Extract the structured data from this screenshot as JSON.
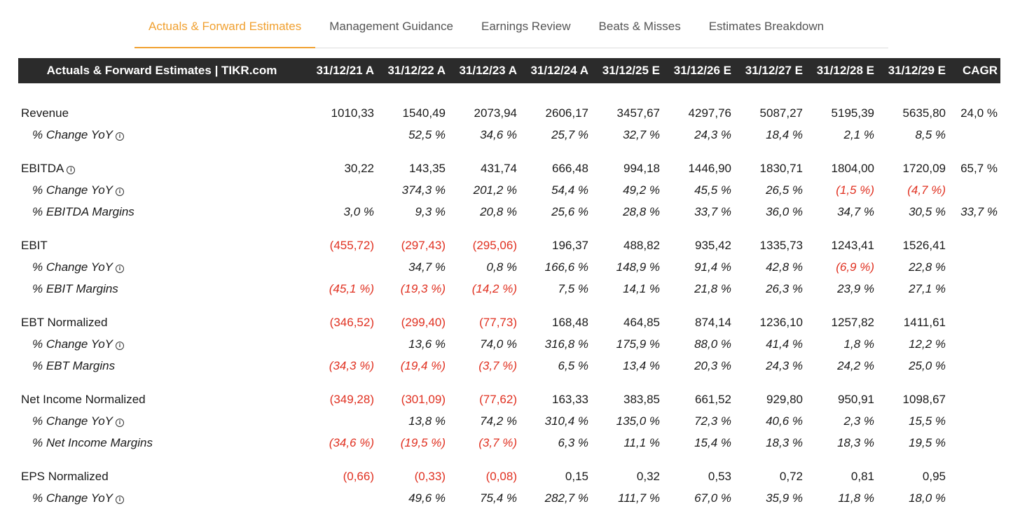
{
  "tabs": [
    {
      "label": "Actuals & Forward Estimates",
      "active": true
    },
    {
      "label": "Management Guidance",
      "active": false
    },
    {
      "label": "Earnings Review",
      "active": false
    },
    {
      "label": "Beats & Misses",
      "active": false
    },
    {
      "label": "Estimates Breakdown",
      "active": false
    }
  ],
  "table": {
    "title": "Actuals & Forward Estimates | TIKR.com",
    "columns": [
      "31/12/21 A",
      "31/12/22 A",
      "31/12/23 A",
      "31/12/24 A",
      "31/12/25 E",
      "31/12/26 E",
      "31/12/27 E",
      "31/12/28 E",
      "31/12/29 E",
      "CAGR"
    ],
    "info_icon": "i",
    "groups": [
      {
        "rows": [
          {
            "label": "Revenue",
            "sub": false,
            "info": false,
            "values": [
              "1010,33",
              "1540,49",
              "2073,94",
              "2606,17",
              "3457,67",
              "4297,76",
              "5087,27",
              "5195,39",
              "5635,80",
              "24,0 %"
            ]
          },
          {
            "label": "% Change YoY",
            "sub": true,
            "info": true,
            "values": [
              "",
              "52,5 %",
              "34,6 %",
              "25,7 %",
              "32,7 %",
              "24,3 %",
              "18,4 %",
              "2,1 %",
              "8,5 %",
              ""
            ]
          }
        ]
      },
      {
        "rows": [
          {
            "label": "EBITDA",
            "sub": false,
            "info": true,
            "values": [
              "30,22",
              "143,35",
              "431,74",
              "666,48",
              "994,18",
              "1446,90",
              "1830,71",
              "1804,00",
              "1720,09",
              "65,7 %"
            ]
          },
          {
            "label": "% Change YoY",
            "sub": true,
            "info": true,
            "values": [
              "",
              "374,3 %",
              "201,2 %",
              "54,4 %",
              "49,2 %",
              "45,5 %",
              "26,5 %",
              "(1,5 %)",
              "(4,7 %)",
              ""
            ]
          },
          {
            "label": "% EBITDA Margins",
            "sub": true,
            "info": false,
            "values": [
              "3,0 %",
              "9,3 %",
              "20,8 %",
              "25,6 %",
              "28,8 %",
              "33,7 %",
              "36,0 %",
              "34,7 %",
              "30,5 %",
              "33,7 %"
            ]
          }
        ]
      },
      {
        "rows": [
          {
            "label": "EBIT",
            "sub": false,
            "info": false,
            "values": [
              "(455,72)",
              "(297,43)",
              "(295,06)",
              "196,37",
              "488,82",
              "935,42",
              "1335,73",
              "1243,41",
              "1526,41",
              ""
            ]
          },
          {
            "label": "% Change YoY",
            "sub": true,
            "info": true,
            "values": [
              "",
              "34,7 %",
              "0,8 %",
              "166,6 %",
              "148,9 %",
              "91,4 %",
              "42,8 %",
              "(6,9 %)",
              "22,8 %",
              ""
            ]
          },
          {
            "label": "% EBIT Margins",
            "sub": true,
            "info": false,
            "values": [
              "(45,1 %)",
              "(19,3 %)",
              "(14,2 %)",
              "7,5 %",
              "14,1 %",
              "21,8 %",
              "26,3 %",
              "23,9 %",
              "27,1 %",
              ""
            ]
          }
        ]
      },
      {
        "rows": [
          {
            "label": "EBT Normalized",
            "sub": false,
            "info": false,
            "values": [
              "(346,52)",
              "(299,40)",
              "(77,73)",
              "168,48",
              "464,85",
              "874,14",
              "1236,10",
              "1257,82",
              "1411,61",
              ""
            ]
          },
          {
            "label": "% Change YoY",
            "sub": true,
            "info": true,
            "values": [
              "",
              "13,6 %",
              "74,0 %",
              "316,8 %",
              "175,9 %",
              "88,0 %",
              "41,4 %",
              "1,8 %",
              "12,2 %",
              ""
            ]
          },
          {
            "label": "% EBT Margins",
            "sub": true,
            "info": false,
            "values": [
              "(34,3 %)",
              "(19,4 %)",
              "(3,7 %)",
              "6,5 %",
              "13,4 %",
              "20,3 %",
              "24,3 %",
              "24,2 %",
              "25,0 %",
              ""
            ]
          }
        ]
      },
      {
        "rows": [
          {
            "label": "Net Income Normalized",
            "sub": false,
            "info": false,
            "values": [
              "(349,28)",
              "(301,09)",
              "(77,62)",
              "163,33",
              "383,85",
              "661,52",
              "929,80",
              "950,91",
              "1098,67",
              ""
            ]
          },
          {
            "label": "% Change YoY",
            "sub": true,
            "info": true,
            "values": [
              "",
              "13,8 %",
              "74,2 %",
              "310,4 %",
              "135,0 %",
              "72,3 %",
              "40,6 %",
              "2,3 %",
              "15,5 %",
              ""
            ]
          },
          {
            "label": "% Net Income Margins",
            "sub": true,
            "info": false,
            "values": [
              "(34,6 %)",
              "(19,5 %)",
              "(3,7 %)",
              "6,3 %",
              "11,1 %",
              "15,4 %",
              "18,3 %",
              "18,3 %",
              "19,5 %",
              ""
            ]
          }
        ]
      },
      {
        "rows": [
          {
            "label": "EPS Normalized",
            "sub": false,
            "info": false,
            "values": [
              "(0,66)",
              "(0,33)",
              "(0,08)",
              "0,15",
              "0,32",
              "0,53",
              "0,72",
              "0,81",
              "0,95",
              ""
            ]
          },
          {
            "label": "% Change YoY",
            "sub": true,
            "info": true,
            "values": [
              "",
              "49,6 %",
              "75,4 %",
              "282,7 %",
              "111,7 %",
              "67,0 %",
              "35,9 %",
              "11,8 %",
              "18,0 %",
              ""
            ]
          }
        ]
      }
    ]
  },
  "colors": {
    "accent": "#f0a030",
    "header_bg": "#2b2b2b",
    "negative": "#e03020"
  }
}
